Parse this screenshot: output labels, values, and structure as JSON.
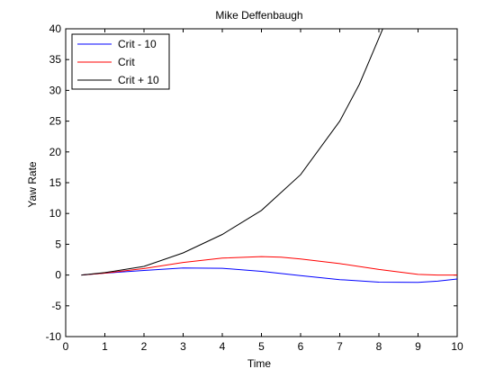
{
  "chart_data": {
    "type": "line",
    "title": "Mike Deffenbaugh",
    "xlabel": "Time",
    "ylabel": "Yaw Rate",
    "xlim": [
      0,
      10
    ],
    "ylim": [
      -10,
      40
    ],
    "xticks": [
      0,
      1,
      2,
      3,
      4,
      5,
      6,
      7,
      8,
      9,
      10
    ],
    "yticks": [
      -10,
      -5,
      0,
      5,
      10,
      15,
      20,
      25,
      30,
      35,
      40
    ],
    "grid": false,
    "legend_position": "top-left",
    "series": [
      {
        "name": "Crit - 10",
        "color": "#0000ff",
        "x": [
          0.4,
          1,
          2,
          3,
          4,
          5,
          6,
          7,
          8,
          9,
          9.5,
          10
        ],
        "y": [
          0,
          0.3,
          0.75,
          1.15,
          1.1,
          0.6,
          -0.1,
          -0.75,
          -1.15,
          -1.2,
          -1.0,
          -0.65
        ]
      },
      {
        "name": "Crit",
        "color": "#ff0000",
        "x": [
          0.4,
          1,
          2,
          3,
          4,
          5,
          5.5,
          6,
          7,
          8,
          9,
          9.5,
          10
        ],
        "y": [
          0,
          0.3,
          1.05,
          2.05,
          2.75,
          3.0,
          2.9,
          2.6,
          1.85,
          0.9,
          0.1,
          0,
          0
        ]
      },
      {
        "name": "Crit + 10",
        "color": "#000000",
        "x": [
          0.4,
          1,
          2,
          3,
          4,
          5,
          6,
          7,
          7.5,
          8,
          8.1
        ],
        "y": [
          0,
          0.4,
          1.4,
          3.6,
          6.6,
          10.5,
          16.3,
          25.0,
          31.0,
          38.5,
          40
        ]
      }
    ]
  }
}
